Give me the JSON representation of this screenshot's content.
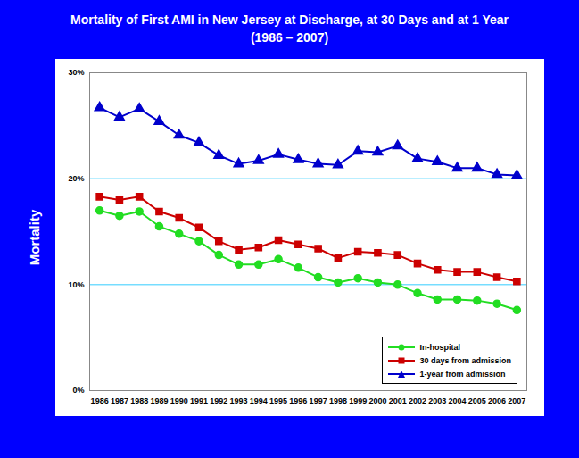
{
  "chart_data": {
    "type": "line",
    "title": "Mortality of First AMI in New Jersey at Discharge, at 30 Days and at 1 Year",
    "subtitle": "(1986 – 2007)",
    "y_label": "Mortality",
    "x": [
      1986,
      1987,
      1988,
      1989,
      1990,
      1991,
      1992,
      1993,
      1994,
      1995,
      1996,
      1997,
      1998,
      1999,
      2000,
      2001,
      2002,
      2003,
      2004,
      2005,
      2006,
      2007
    ],
    "series": [
      {
        "name": "In-hospital",
        "color": "#22dd22",
        "marker": "circle",
        "values": [
          17.0,
          16.5,
          16.9,
          15.5,
          14.8,
          14.1,
          12.8,
          11.9,
          11.9,
          12.4,
          11.6,
          10.7,
          10.2,
          10.6,
          10.2,
          10.0,
          9.2,
          8.6,
          8.6,
          8.5,
          8.2,
          7.6
        ]
      },
      {
        "name": "30 days from admission",
        "color": "#cc0000",
        "marker": "square",
        "values": [
          18.3,
          18.0,
          18.3,
          16.9,
          16.3,
          15.4,
          14.1,
          13.3,
          13.5,
          14.2,
          13.8,
          13.4,
          12.5,
          13.1,
          13.0,
          12.8,
          12.0,
          11.4,
          11.2,
          11.2,
          10.7,
          10.3
        ]
      },
      {
        "name": "1-year from admission",
        "color": "#0000cc",
        "marker": "triangle",
        "values": [
          26.7,
          25.8,
          26.6,
          25.4,
          24.1,
          23.4,
          22.2,
          21.4,
          21.7,
          22.3,
          21.8,
          21.4,
          21.3,
          22.6,
          22.5,
          23.1,
          21.9,
          21.6,
          21.0,
          21.0,
          20.4,
          20.3
        ]
      }
    ],
    "xlim": [
      1985.5,
      2007.5
    ],
    "xticks": [
      1986,
      1987,
      1988,
      1989,
      1990,
      1991,
      1992,
      1993,
      1994,
      1995,
      1996,
      1997,
      1998,
      1999,
      2000,
      2001,
      2002,
      2003,
      2004,
      2005,
      2006,
      2007
    ],
    "ylim": [
      0,
      30
    ],
    "yticks": [
      {
        "value": 0,
        "label": "0%"
      },
      {
        "value": 10,
        "label": "10%"
      },
      {
        "value": 20,
        "label": "20%"
      },
      {
        "value": 30,
        "label": "30%"
      }
    ],
    "grid": true,
    "legend": "lower right"
  }
}
